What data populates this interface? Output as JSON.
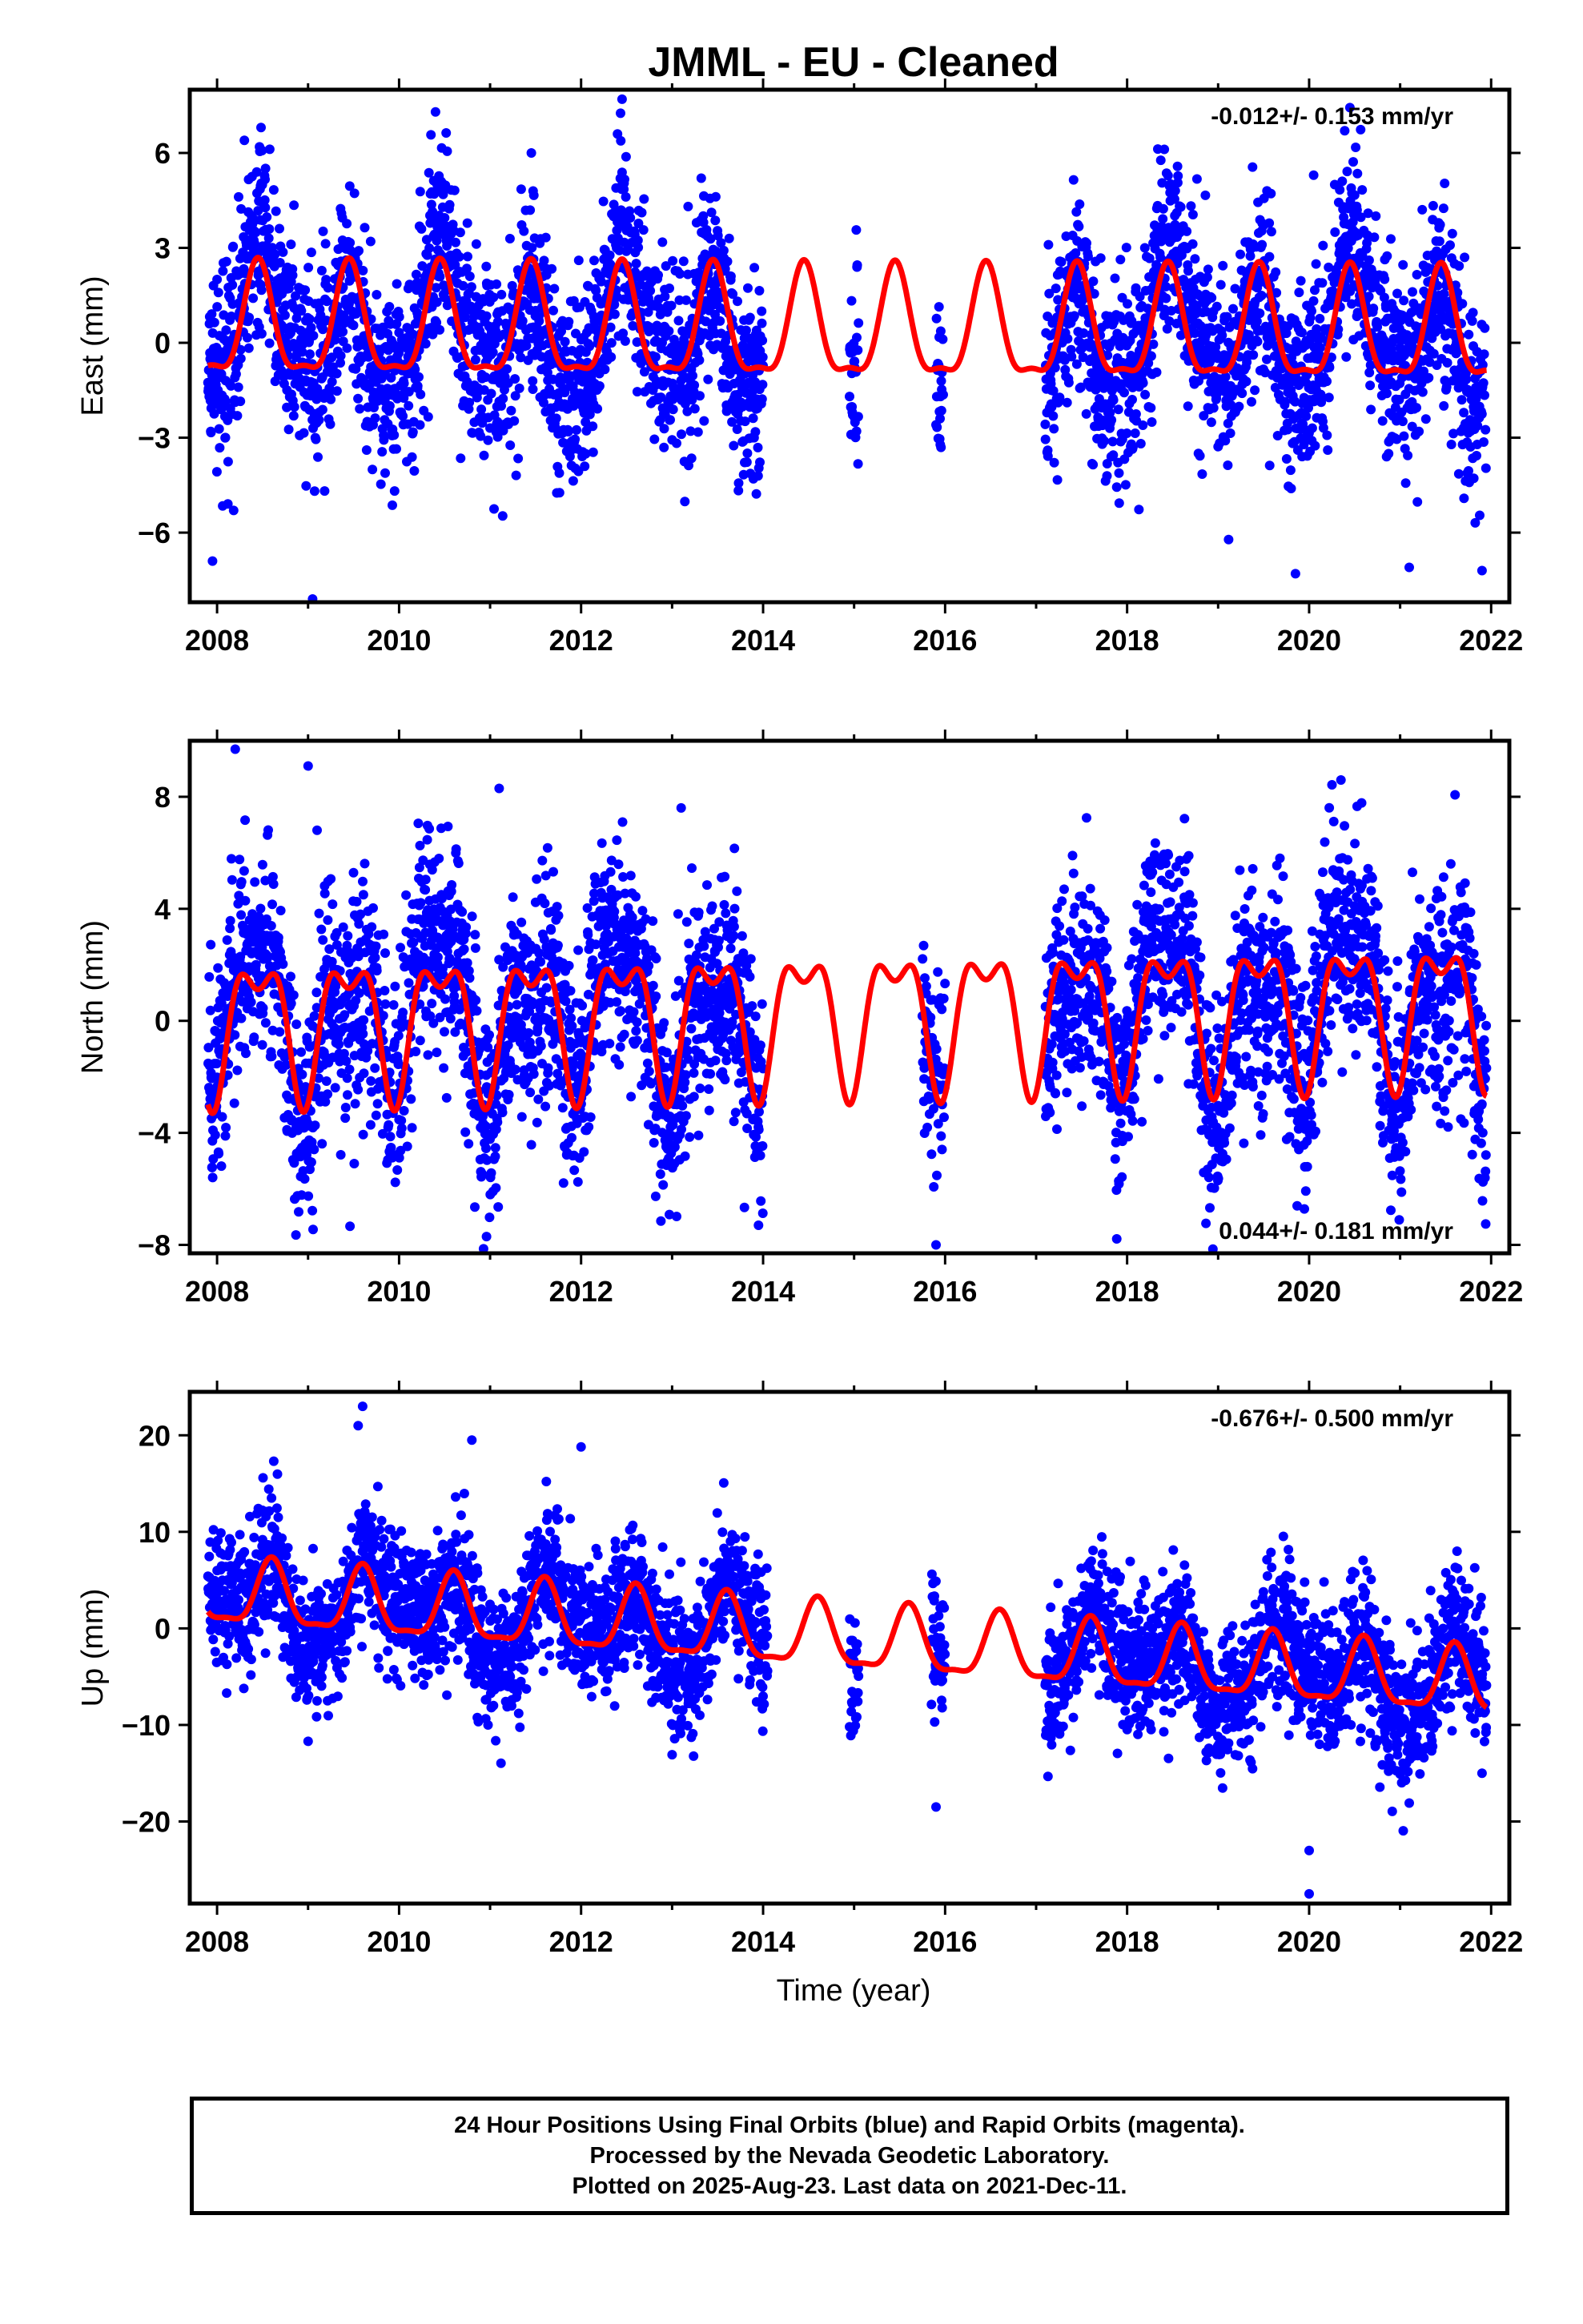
{
  "title": "JMML  - EU - Cleaned",
  "xlabel": "Time (year)",
  "colors": {
    "points": "#0000ff",
    "model": "#ff0000",
    "axes": "#000000"
  },
  "chart_data": [
    {
      "type": "scatter",
      "panel": "east",
      "ylabel": "East (mm)",
      "rate_text": "-0.012+/- 0.153 mm/yr",
      "rate_position": "top-right",
      "xlim": [
        2007.7,
        2022.2
      ],
      "ylim": [
        -8.2,
        8.0
      ],
      "xticks": [
        2008,
        2010,
        2012,
        2014,
        2016,
        2018,
        2020,
        2022
      ],
      "yticks": [
        -6,
        -3,
        0,
        3,
        6
      ],
      "ytick_labels": [
        "−6",
        "−3",
        "0",
        "3",
        "6"
      ],
      "grid": false,
      "data_segments": [
        [
          2007.9,
          2014.0
        ],
        [
          2014.95,
          2015.05
        ],
        [
          2015.9,
          2015.98
        ],
        [
          2017.1,
          2021.95
        ]
      ],
      "model": {
        "offset": 0.45,
        "trend": -0.012,
        "annual_amp": 1.7,
        "annual_peak": 2008.45,
        "semiannual_amp": 0.55,
        "semiannual_phase": 2008.45,
        "x_range": [
          2007.9,
          2021.95
        ]
      },
      "scatter_sigma": 1.5,
      "outliers": [
        [
          2007.95,
          -6.9
        ],
        [
          2008.3,
          6.4
        ],
        [
          2009.05,
          -8.1
        ],
        [
          2010.4,
          7.3
        ],
        [
          2012.45,
          7.7
        ],
        [
          2012.4,
          6.6
        ],
        [
          2020.05,
          5.3
        ],
        [
          2019.85,
          -7.3
        ],
        [
          2021.1,
          -7.1
        ],
        [
          2021.9,
          -7.2
        ],
        [
          2008.0,
          2.0
        ]
      ]
    },
    {
      "type": "scatter",
      "panel": "north",
      "ylabel": "North (mm)",
      "rate_text": "0.044+/- 0.181 mm/yr",
      "rate_position": "bottom-right",
      "xlim": [
        2007.7,
        2022.2
      ],
      "ylim": [
        -8.3,
        10.0
      ],
      "xticks": [
        2008,
        2010,
        2012,
        2014,
        2016,
        2018,
        2020,
        2022
      ],
      "yticks": [
        -8,
        -4,
        0,
        4,
        8
      ],
      "ytick_labels": [
        "−8",
        "−4",
        "0",
        "4",
        "8"
      ],
      "grid": false,
      "data_segments": [
        [
          2007.9,
          2014.0
        ],
        [
          2015.75,
          2016.0
        ],
        [
          2017.1,
          2021.95
        ]
      ],
      "model": {
        "offset": 0.0,
        "trend": 0.044,
        "annual_amp": 2.2,
        "annual_peak": 2008.45,
        "semiannual_amp": 1.1,
        "semiannual_phase": 2008.2,
        "x_range": [
          2007.9,
          2021.95
        ]
      },
      "scatter_sigma": 1.9,
      "outliers": [
        [
          2008.2,
          9.7
        ],
        [
          2009.0,
          9.1
        ],
        [
          2011.1,
          8.3
        ],
        [
          2013.1,
          7.6
        ],
        [
          2017.4,
          5.9
        ],
        [
          2015.9,
          -8.0
        ],
        [
          2020.35,
          8.6
        ],
        [
          2013.95,
          -7.3
        ]
      ]
    },
    {
      "type": "scatter",
      "panel": "up",
      "ylabel": "Up (mm)",
      "rate_text": "-0.676+/- 0.500 mm/yr",
      "rate_position": "top-right",
      "xlim": [
        2007.7,
        2022.2
      ],
      "ylim": [
        -28.5,
        24.5
      ],
      "xticks": [
        2008,
        2010,
        2012,
        2014,
        2016,
        2018,
        2020,
        2022
      ],
      "yticks": [
        -20,
        -10,
        0,
        10,
        20
      ],
      "ytick_labels": [
        "−20",
        "−10",
        "0",
        "10",
        "20"
      ],
      "grid": false,
      "data_segments": [
        [
          2007.9,
          2014.05
        ],
        [
          2014.95,
          2015.05
        ],
        [
          2015.85,
          2016.0
        ],
        [
          2017.1,
          2021.95
        ]
      ],
      "model": {
        "offset": 3.5,
        "trend": -0.676,
        "annual_amp": 3.3,
        "annual_peak": 2008.6,
        "semiannual_amp": 1.0,
        "semiannual_phase": 2008.6,
        "x_range": [
          2007.9,
          2021.95
        ]
      },
      "scatter_sigma": 3.6,
      "outliers": [
        [
          2009.6,
          23.0
        ],
        [
          2009.55,
          21.0
        ],
        [
          2010.8,
          19.5
        ],
        [
          2012.0,
          18.8
        ],
        [
          2015.9,
          -18.5
        ],
        [
          2020.0,
          -23.0
        ],
        [
          2020.0,
          -27.5
        ],
        [
          2009.0,
          -11.7
        ],
        [
          2021.9,
          -15.0
        ]
      ]
    }
  ],
  "footer": {
    "line1": "24 Hour Positions Using Final Orbits (blue) and Rapid Orbits (magenta).",
    "line2": "Processed by the Nevada Geodetic Laboratory.",
    "line3": "Plotted on 2025-Aug-23. Last data on 2021-Dec-11."
  }
}
